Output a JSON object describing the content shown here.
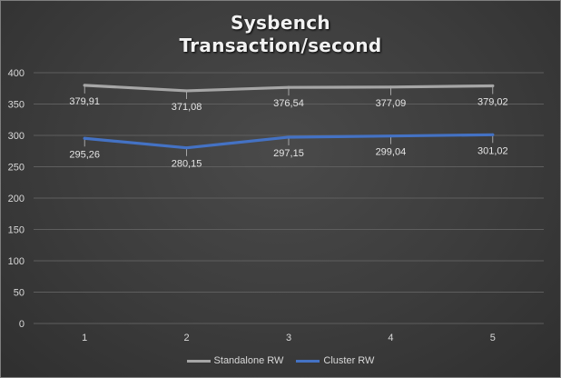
{
  "chart_data": {
    "type": "line",
    "title": [
      "Sysbench",
      "Transaction/second"
    ],
    "categories": [
      "1",
      "2",
      "3",
      "4",
      "5"
    ],
    "ylim": [
      0,
      400
    ],
    "yticks": [
      "0",
      "50",
      "100",
      "150",
      "200",
      "250",
      "300",
      "350",
      "400"
    ],
    "grid": true,
    "legend_position": "bottom",
    "series": [
      {
        "name": "Standalone RW",
        "color": "#a6a6a6",
        "values": [
          379.91,
          371.08,
          376.54,
          377.09,
          379.02
        ],
        "labels": [
          "379,91",
          "371,08",
          "376,54",
          "377,09",
          "379,02"
        ]
      },
      {
        "name": "Cluster RW",
        "color": "#4472c4",
        "values": [
          295.26,
          280.15,
          297.15,
          299.04,
          301.02
        ],
        "labels": [
          "295,26",
          "280,15",
          "297,15",
          "299,04",
          "301,02"
        ]
      }
    ]
  }
}
